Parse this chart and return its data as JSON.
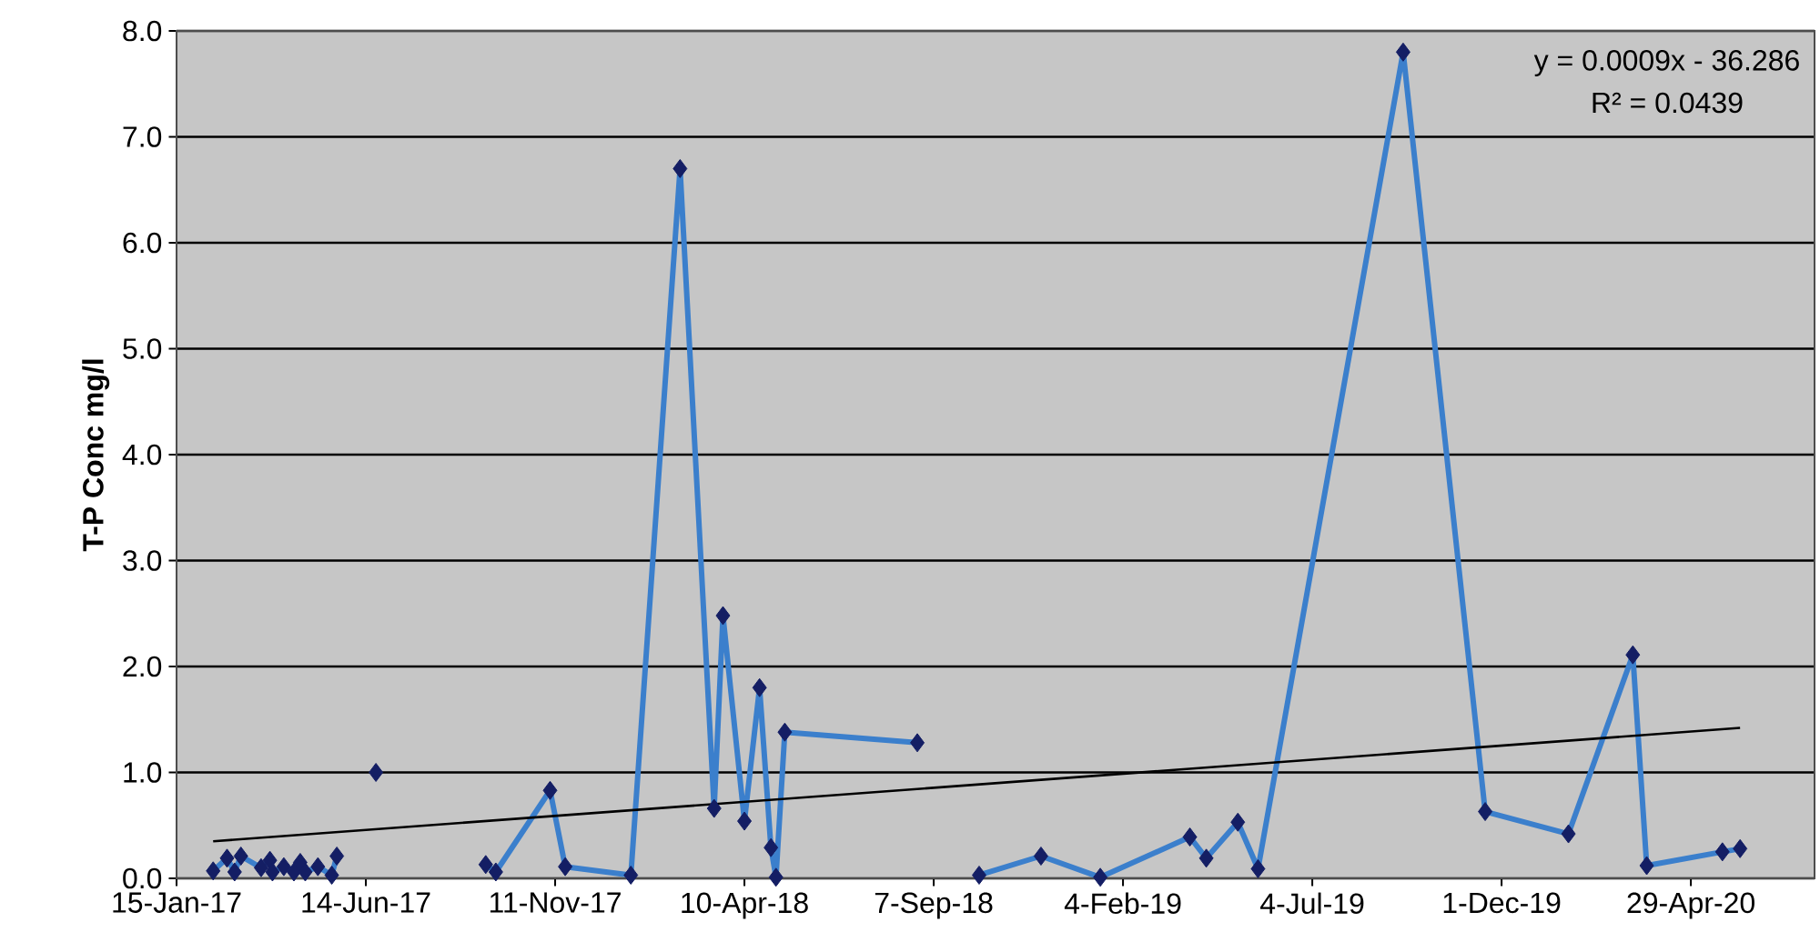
{
  "chart_data": {
    "type": "line",
    "ylabel": "T-P Conc mg/l",
    "annotations": [
      "y = 0.0009x - 36.286",
      "R² = 0.0439"
    ],
    "xlim": [
      "2017-01-15",
      "2020-08-05"
    ],
    "xticks": [
      {
        "value": "2017-01-15",
        "label": "15-Jan-17"
      },
      {
        "value": "2017-06-14",
        "label": "14-Jun-17"
      },
      {
        "value": "2017-11-11",
        "label": "11-Nov-17"
      },
      {
        "value": "2018-04-10",
        "label": "10-Apr-18"
      },
      {
        "value": "2018-09-07",
        "label": "7-Sep-18"
      },
      {
        "value": "2019-02-04",
        "label": "4-Feb-19"
      },
      {
        "value": "2019-07-04",
        "label": "4-Jul-19"
      },
      {
        "value": "2019-12-01",
        "label": "1-Dec-19"
      },
      {
        "value": "2020-04-29",
        "label": "29-Apr-20"
      }
    ],
    "ylim": [
      0,
      8
    ],
    "yticks": [
      {
        "value": 0,
        "label": "0.0"
      },
      {
        "value": 1,
        "label": "1.0"
      },
      {
        "value": 2,
        "label": "2.0"
      },
      {
        "value": 3,
        "label": "3.0"
      },
      {
        "value": 4,
        "label": "4.0"
      },
      {
        "value": 5,
        "label": "5.0"
      },
      {
        "value": 6,
        "label": "6.0"
      },
      {
        "value": 7,
        "label": "7.0"
      },
      {
        "value": 8,
        "label": "8.0"
      }
    ],
    "grid": "y",
    "marker": "diamond",
    "line_style": "solid",
    "series": [
      {
        "color": "#3b7fcc",
        "colors": [
          "#141e64",
          "#141e64",
          "#141e64",
          "#141e64",
          "#141e64",
          "#141e64",
          "#141e64",
          "#141e64",
          "#141e64",
          "#141e64",
          "#141e64",
          "#141e64",
          "#141e64",
          "#141e64",
          "#141e64",
          "#141e64",
          "#141e64",
          "#141e64",
          "#141e64",
          "#141e64",
          "#141e64",
          "#141e64",
          "#141e64",
          "#141e64",
          "#141e64",
          "#141e64",
          "#141e64",
          "#141e64",
          "#141e64",
          "#141e64",
          "#141e64",
          "#141e64",
          "#141e64",
          "#141e64",
          "#141e64",
          "#141e64",
          "#141e64",
          "#141e64",
          "#141e64",
          "#141e64",
          "#141e64",
          "#141e64",
          "#141e64",
          "#141e64",
          "#141e64",
          "#141e64"
        ],
        "x": [
          "2017-02-13",
          "2017-02-24",
          "2017-03-02",
          "2017-03-07",
          "2017-03-23",
          "2017-03-30",
          "2017-04-01",
          "2017-04-10",
          "2017-04-18",
          "2017-04-23",
          "2017-04-27",
          "2017-05-07",
          "2017-05-18",
          "2017-05-22",
          "2017-06-05",
          "2017-06-22",
          "2017-08-01",
          "2017-09-17",
          "2017-09-25",
          "2017-11-07",
          "2017-11-19",
          "2018-01-10",
          "2018-02-18",
          "2018-03-17",
          "2018-03-24",
          "2018-04-10",
          "2018-04-22",
          "2018-05-01",
          "2018-05-05",
          "2018-05-12",
          "2018-08-25",
          "2018-09-20",
          "2018-10-13",
          "2018-12-01",
          "2019-01-17",
          "2019-03-29",
          "2019-04-11",
          "2019-05-06",
          "2019-05-22",
          "2019-09-14",
          "2019-11-18",
          "2020-01-23",
          "2020-03-14",
          "2020-03-25",
          "2020-05-24",
          "2020-06-07"
        ],
        "values": [
          0.07,
          0.19,
          0.06,
          0.21,
          0.1,
          0.17,
          0.06,
          0.11,
          0.06,
          0.15,
          0.06,
          0.11,
          0.03,
          0.21,
          null,
          1.0,
          null,
          0.13,
          0.06,
          0.83,
          0.11,
          0.03,
          6.7,
          0.66,
          2.48,
          0.54,
          1.8,
          0.29,
          0.01,
          1.38,
          1.28,
          null,
          0.03,
          0.21,
          0.01,
          0.39,
          0.19,
          0.53,
          0.09,
          7.8,
          0.63,
          0.42,
          2.11,
          0.12,
          0.25,
          0.28
        ]
      },
      {
        "type": "line",
        "color": "#000000",
        "marker": "none",
        "x": [
          "2017-02-13",
          "2020-06-07"
        ],
        "values": [
          0.35,
          1.42
        ]
      }
    ]
  }
}
